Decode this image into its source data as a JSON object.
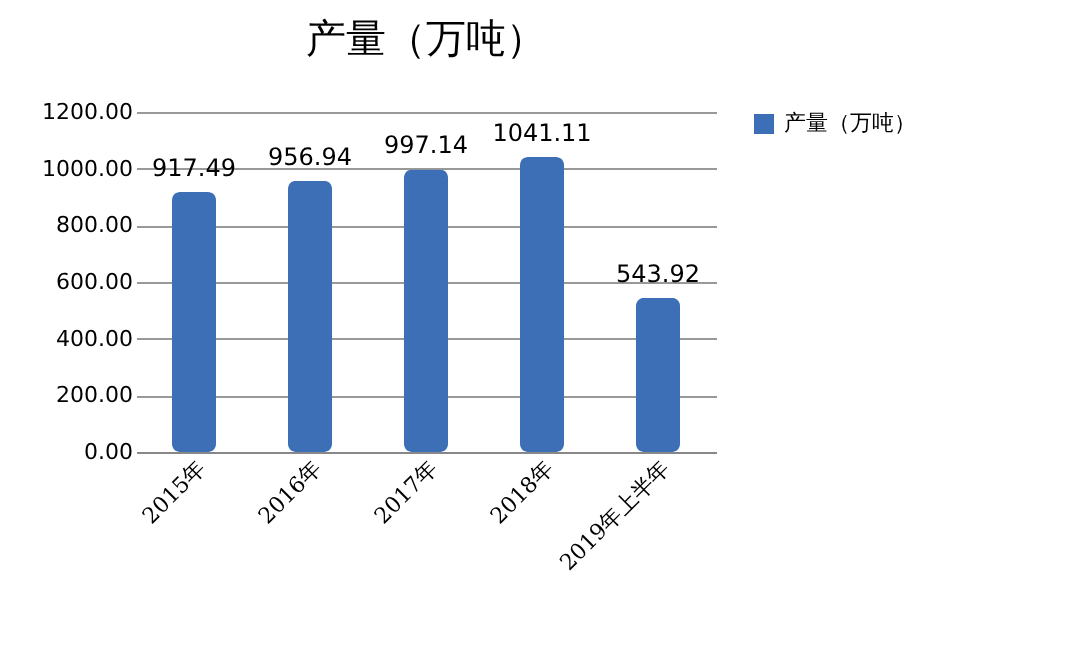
{
  "chart_data": {
    "type": "bar",
    "title": "产量（万吨）",
    "categories": [
      "2015年",
      "2016年",
      "2017年",
      "2018年",
      "2019年上半年"
    ],
    "series": [
      {
        "name": "产量（万吨）",
        "color": "#3d6fb6",
        "values": [
          917.49,
          956.94,
          997.14,
          1041.11,
          543.92
        ]
      }
    ],
    "ylim": [
      0,
      1200
    ],
    "yticks": [
      {
        "value": 0,
        "label": "0.00"
      },
      {
        "value": 200,
        "label": "200.00"
      },
      {
        "value": 400,
        "label": "400.00"
      },
      {
        "value": 600,
        "label": "600.00"
      },
      {
        "value": 800,
        "label": "800.00"
      },
      {
        "value": 1000,
        "label": "1000.00"
      },
      {
        "value": 1200,
        "label": "1200.00"
      }
    ],
    "grid": "y",
    "legend": "right",
    "data_labels": true
  }
}
